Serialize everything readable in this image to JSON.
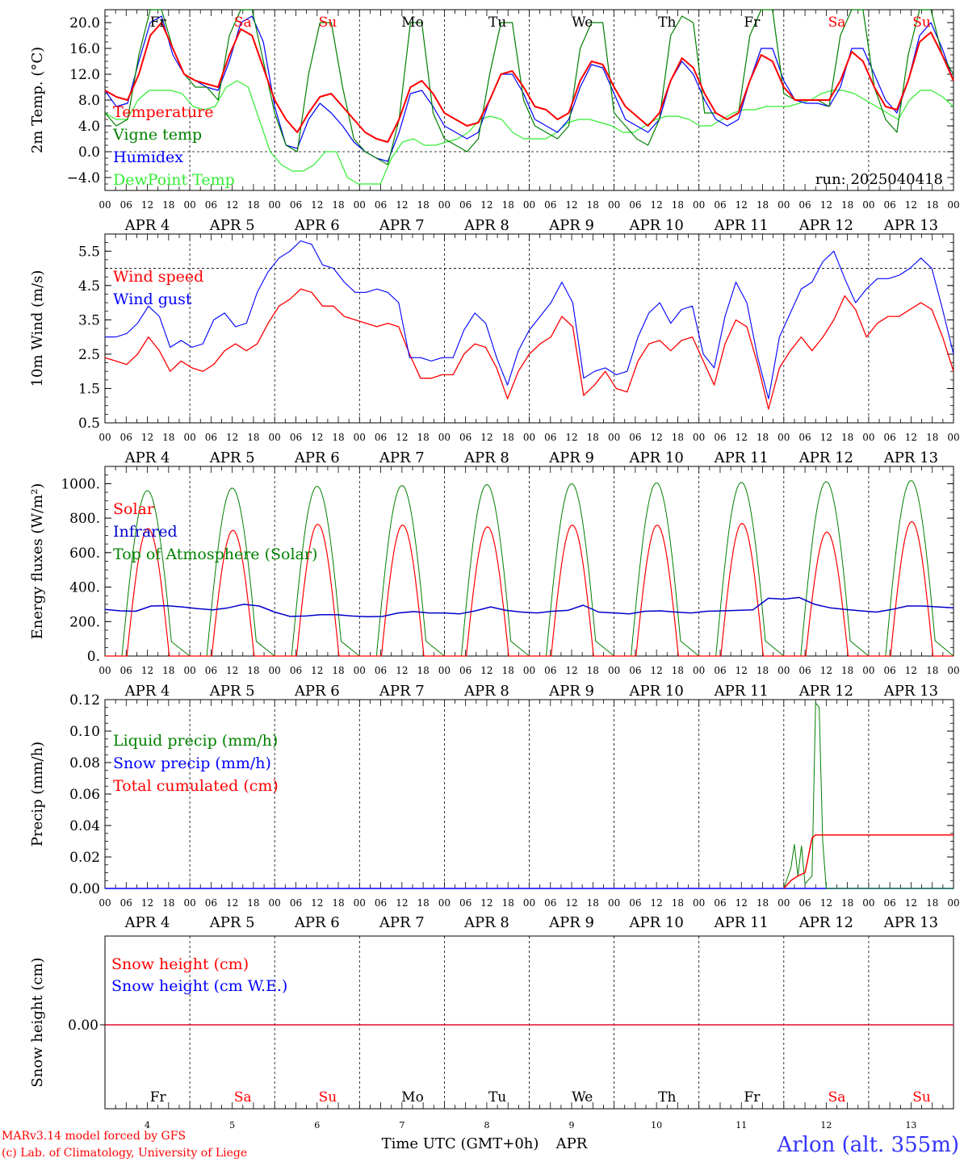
{
  "chart_data": {
    "type": "line",
    "run_label": "run: 2025040418",
    "x_hour_ticks": [
      "00",
      "06",
      "12",
      "18"
    ],
    "day_labels": [
      "APR  4",
      "APR  5",
      "APR  6",
      "APR  7",
      "APR  8",
      "APR  9",
      "APR 10",
      "APR 11",
      "APR 12",
      "APR 13"
    ],
    "weekdays": [
      "Fr",
      "Sa",
      "Su",
      "Mo",
      "Tu",
      "We",
      "Th",
      "Fr",
      "Sa",
      "Su"
    ],
    "weekend_flags": [
      false,
      true,
      true,
      false,
      false,
      false,
      false,
      false,
      true,
      true
    ],
    "day_numbers": [
      "4",
      "5",
      "6",
      "7",
      "8",
      "9",
      "10",
      "11",
      "12",
      "13"
    ],
    "xlabel": "Time UTC (GMT+0h)",
    "xlabel_month": "APR",
    "panels": {
      "temp": {
        "ylabel": "2m Temp. (°C)",
        "ylim": [
          -6,
          22
        ],
        "yticks": [
          "20.0",
          "16.0",
          "12.0",
          "8.0",
          "4.0",
          "0.0",
          "−4.0"
        ],
        "ref_line": 0,
        "series": [
          {
            "name": "Temperature",
            "color": "#ff0000",
            "width": 2,
            "y": [
              9.5,
              8.5,
              8,
              12,
              18,
              20,
              16,
              12,
              11,
              10.5,
              10,
              15,
              19,
              18,
              13,
              8,
              5,
              3,
              6,
              8.5,
              9,
              7,
              5,
              3,
              2,
              1.5,
              5,
              10,
              11,
              9,
              6,
              5,
              4,
              4.5,
              8,
              12,
              12.5,
              10,
              7,
              6.5,
              5,
              6,
              11,
              14,
              13.5,
              10,
              7,
              5.5,
              4,
              6,
              11,
              14.5,
              13,
              9,
              6,
              5,
              6,
              11,
              15,
              14,
              10,
              8,
              8,
              8,
              8,
              11,
              15.5,
              14,
              10,
              7,
              6.5,
              11,
              17,
              18.5,
              15,
              11
            ]
          },
          {
            "name": "Vigne temp",
            "color": "#008000",
            "width": 1.2,
            "y": [
              6,
              4,
              5,
              15,
              22,
              22,
              16,
              12,
              10,
              10,
              8,
              18,
              22,
              22,
              14,
              6,
              1,
              0,
              12,
              20,
              20,
              10,
              2,
              0,
              -1,
              -2,
              5,
              20,
              20,
              6,
              2,
              1,
              0,
              2,
              12,
              20,
              20,
              8,
              4,
              3,
              2,
              4,
              16,
              20,
              20,
              6,
              4,
              2,
              1,
              5,
              18,
              21,
              20,
              6,
              6,
              5,
              6,
              18,
              22,
              22,
              9,
              8,
              8,
              8,
              7,
              18,
              22,
              22,
              10,
              5,
              3,
              15,
              22,
              22,
              15,
              12
            ]
          },
          {
            "name": "Humidex",
            "color": "#0000ff",
            "width": 1.2,
            "y": [
              9.5,
              7,
              7.5,
              14,
              20,
              21,
              15,
              12,
              11,
              10,
              9.5,
              14,
              20,
              21,
              17,
              7,
              1,
              0.5,
              5,
              7.5,
              6,
              4,
              1.5,
              0,
              -1,
              -1.5,
              3,
              9,
              9.5,
              7,
              4,
              3,
              2,
              3,
              8,
              12,
              12,
              9,
              5,
              4,
              3,
              5,
              10,
              13.5,
              13,
              9,
              5,
              4,
              3,
              5,
              11,
              14,
              12,
              8,
              5,
              4,
              5,
              11,
              16,
              16,
              11,
              8,
              7.5,
              7.5,
              7,
              10,
              16,
              16,
              12,
              8,
              6,
              11,
              18,
              20,
              16,
              11
            ]
          },
          {
            "name": "DewPoint Temp",
            "color": "#33ee33",
            "width": 1.2,
            "y": [
              6,
              5,
              5,
              8,
              9.5,
              9.5,
              9.5,
              9,
              7,
              6.5,
              7,
              10,
              11,
              10,
              5,
              0,
              -2,
              -3,
              -3,
              -2,
              0,
              0,
              -4,
              -5,
              -5,
              -5,
              -1,
              1.5,
              2,
              1,
              1,
              1.5,
              2,
              3,
              5,
              5.5,
              5,
              3,
              2,
              2,
              2,
              3,
              4.5,
              5,
              5,
              4.5,
              4,
              3,
              3,
              4,
              5,
              5.5,
              5.5,
              5,
              4,
              4,
              5,
              6,
              6.5,
              6.5,
              7,
              7,
              7,
              7.5,
              8,
              9,
              9.5,
              9.5,
              9,
              8,
              7,
              6,
              5,
              8,
              9.5,
              9.5,
              8.5,
              7
            ]
          }
        ]
      },
      "wind": {
        "ylabel": "10m Wind (m/s)",
        "ylim": [
          0.5,
          6.0
        ],
        "yticks": [
          "5.5",
          "4.5",
          "3.5",
          "2.5",
          "1.5",
          "0.5"
        ],
        "ref_line": 5.0,
        "series": [
          {
            "name": "Wind speed",
            "color": "#ff0000",
            "width": 1.3,
            "y": [
              2.4,
              2.3,
              2.2,
              2.5,
              3.0,
              2.6,
              2.0,
              2.3,
              2.1,
              2.0,
              2.2,
              2.6,
              2.8,
              2.6,
              2.8,
              3.4,
              3.9,
              4.1,
              4.4,
              4.3,
              3.9,
              3.9,
              3.6,
              3.5,
              3.4,
              3.3,
              3.4,
              3.3,
              2.5,
              1.8,
              1.8,
              1.9,
              1.9,
              2.5,
              2.8,
              2.7,
              2.1,
              1.2,
              2.0,
              2.5,
              2.8,
              3.0,
              3.6,
              3.3,
              1.3,
              1.6,
              2.0,
              1.5,
              1.4,
              2.3,
              2.8,
              2.9,
              2.6,
              2.9,
              3.0,
              2.3,
              1.6,
              2.8,
              3.5,
              3.3,
              2.2,
              0.9,
              2.1,
              2.6,
              3.0,
              2.6,
              3.0,
              3.5,
              4.2,
              3.8,
              3.0,
              3.4,
              3.6,
              3.6,
              3.8,
              4.0,
              3.8,
              3.0,
              2.0
            ]
          },
          {
            "name": "Wind gust",
            "color": "#0000ff",
            "width": 1.1,
            "y": [
              3.0,
              3.0,
              3.1,
              3.4,
              3.9,
              3.6,
              2.7,
              2.9,
              2.7,
              2.8,
              3.5,
              3.7,
              3.3,
              3.4,
              4.3,
              4.9,
              5.3,
              5.5,
              5.8,
              5.7,
              5.1,
              5.0,
              4.6,
              4.3,
              4.3,
              4.4,
              4.3,
              4.0,
              2.4,
              2.4,
              2.3,
              2.4,
              2.4,
              3.2,
              3.7,
              3.4,
              2.4,
              1.6,
              2.6,
              3.2,
              3.6,
              4.0,
              4.6,
              4.0,
              1.8,
              2.0,
              2.1,
              1.9,
              2.0,
              3.0,
              3.7,
              4.0,
              3.4,
              3.8,
              3.9,
              2.5,
              2.1,
              3.6,
              4.6,
              4.0,
              2.4,
              1.2,
              3.0,
              3.7,
              4.4,
              4.6,
              5.2,
              5.5,
              4.7,
              4.0,
              4.4,
              4.7,
              4.7,
              4.8,
              5.0,
              5.3,
              5.0,
              3.8,
              2.5
            ]
          }
        ]
      },
      "energy": {
        "ylabel": "Energy fluxes (W/m²)",
        "ylim": [
          0,
          1100
        ],
        "yticks": [
          "1000.",
          "800.",
          "600.",
          "400.",
          "200.",
          "0."
        ],
        "series": [
          {
            "name": "Solar",
            "color": "#ff0000",
            "width": 1.2,
            "day_peaks": [
              740,
              730,
              765,
              760,
              750,
              760,
              760,
              770,
              720,
              780
            ]
          },
          {
            "name": "Infrared",
            "color": "#0000cc",
            "width": 1.5,
            "y": [
              270,
              262,
              260,
              290,
              292,
              285,
              275,
              268,
              280,
              300,
              290,
              255,
              230,
              232,
              240,
              240,
              232,
              228,
              230,
              250,
              258,
              250,
              250,
              245,
              262,
              285,
              265,
              255,
              250,
              260,
              265,
              295,
              255,
              250,
              245,
              260,
              262,
              255,
              250,
              260,
              262,
              265,
              268,
              335,
              330,
              340,
              300,
              280,
              270,
              262,
              255,
              270,
              290,
              290,
              285,
              280
            ]
          },
          {
            "name": "Top of Atmosphere (Solar)",
            "color": "#008000",
            "width": 1.0,
            "day_peaks": [
              960,
              975,
              985,
              990,
              995,
              1000,
              1005,
              1008,
              1012,
              1018
            ]
          }
        ]
      },
      "precip": {
        "ylabel": "Precip (mm/h)",
        "ylim": [
          0,
          0.12
        ],
        "yticks": [
          "0.12",
          "0.10",
          "0.08",
          "0.06",
          "0.04",
          "0.02",
          "0.00"
        ],
        "series": [
          {
            "name": "Liquid precip (mm/h)",
            "color": "#008000",
            "width": 1.0
          },
          {
            "name": "Snow precip (mm/h)",
            "color": "#0000ff",
            "width": 1.0
          },
          {
            "name": "Total cumulated (cm)",
            "color": "#ff0000",
            "width": 1.5,
            "final_value": 0.034
          }
        ],
        "liquid_points": [
          [
            192,
            0
          ],
          [
            194,
            0.013
          ],
          [
            195,
            0.028
          ],
          [
            196,
            0.008
          ],
          [
            197,
            0.027
          ],
          [
            198,
            0.003
          ],
          [
            200,
            0.008
          ],
          [
            201,
            0.118
          ],
          [
            202,
            0.115
          ],
          [
            203,
            0.03
          ],
          [
            204,
            0.0
          ],
          [
            240,
            0.0
          ]
        ],
        "cumulated_points": [
          [
            192,
            0
          ],
          [
            194,
            0.005
          ],
          [
            196,
            0.008
          ],
          [
            198,
            0.01
          ],
          [
            200,
            0.032
          ],
          [
            201,
            0.034
          ],
          [
            240,
            0.034
          ]
        ]
      },
      "snow": {
        "ylabel": "Snow height (cm)",
        "ytick": "0.00",
        "series": [
          {
            "name": "Snow height (cm)",
            "color": "#ff0000",
            "value": 0
          },
          {
            "name": "Snow height (cm W.E.)",
            "color": "#0000ff",
            "value": 0
          }
        ]
      }
    }
  },
  "footer": {
    "model_line": "MARv3.14 model forced by GFS",
    "copyright_line": "(c) Lab. of Climatology, University of Liege",
    "station": "Arlon (alt. 355m)"
  }
}
